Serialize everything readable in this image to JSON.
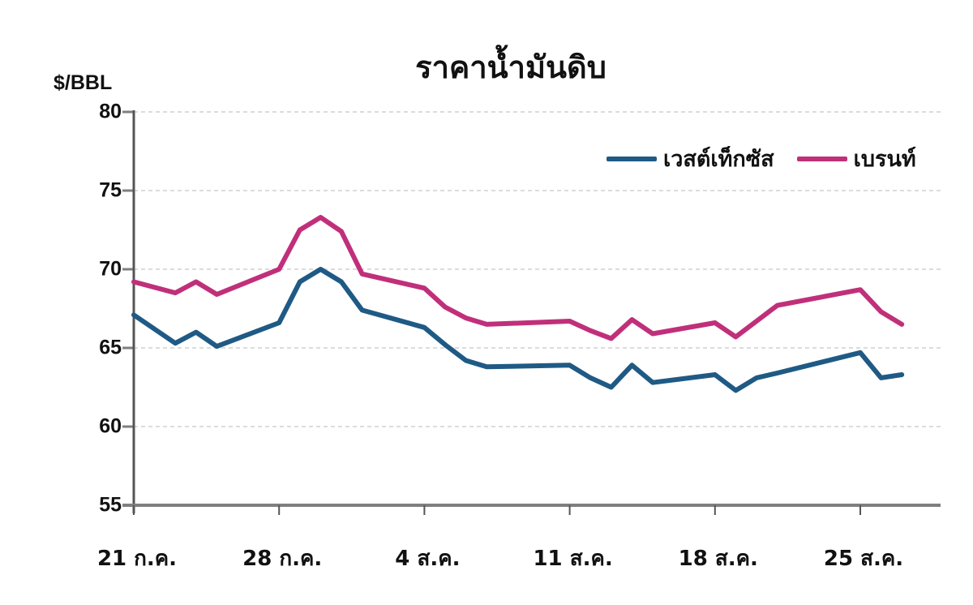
{
  "chart_data": {
    "type": "line",
    "title": "ราคาน้ำมันดิบ",
    "xlabel": "",
    "ylabel": "$/BBL",
    "ylim": [
      55,
      80
    ],
    "yticks": [
      55,
      60,
      65,
      70,
      75,
      80
    ],
    "grid": true,
    "legend_position": "top-right",
    "x_tick_labels": [
      "21 ก.ค.",
      "28 ก.ค.",
      "4 ส.ค.",
      "11 ส.ค.",
      "18 ส.ค.",
      "25 ส.ค."
    ],
    "x_tick_day_offsets": [
      0,
      7,
      14,
      21,
      28,
      35
    ],
    "day_offsets": [
      0,
      2,
      3,
      4,
      7,
      8,
      9,
      10,
      11,
      14,
      15,
      16,
      17,
      21,
      22,
      23,
      24,
      25,
      28,
      29,
      30,
      31,
      35,
      36,
      37
    ],
    "series": [
      {
        "name": "เวสต์เท็กซัส",
        "color": "#1f5a85",
        "values": [
          67.1,
          65.3,
          66.0,
          65.1,
          66.6,
          69.2,
          70.0,
          69.2,
          67.4,
          66.3,
          65.2,
          64.2,
          63.8,
          63.9,
          63.1,
          62.5,
          63.9,
          62.8,
          63.3,
          62.3,
          63.1,
          63.4,
          64.7,
          63.1,
          63.3
        ]
      },
      {
        "name": "เบรนท์",
        "color": "#c0307a",
        "values": [
          69.2,
          68.5,
          69.2,
          68.4,
          70.0,
          72.5,
          73.3,
          72.4,
          69.7,
          68.8,
          67.6,
          66.9,
          66.5,
          66.7,
          66.1,
          65.6,
          66.8,
          65.9,
          66.6,
          65.7,
          66.7,
          67.7,
          68.7,
          67.3,
          66.5
        ]
      }
    ]
  },
  "axis_color": "#7f7f7f",
  "grid_color": "#d0d0d0"
}
